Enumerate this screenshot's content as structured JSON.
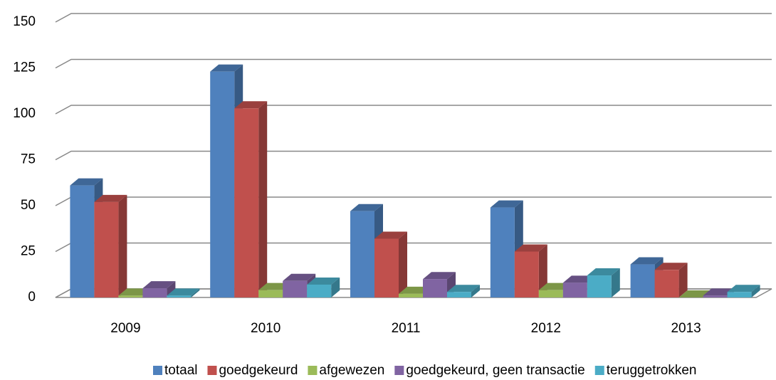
{
  "chart_data": {
    "type": "bar3d",
    "categories": [
      "2009",
      "2010",
      "2011",
      "2012",
      "2013"
    ],
    "series": [
      {
        "name": "totaal",
        "color": "#4f81bd",
        "values": [
          61,
          123,
          47,
          49,
          18
        ]
      },
      {
        "name": "goedgekeurd",
        "color": "#c0504d",
        "values": [
          52,
          103,
          32,
          25,
          15
        ]
      },
      {
        "name": "afgewezen",
        "color": "#9bbb59",
        "values": [
          1,
          4,
          2,
          4,
          0
        ]
      },
      {
        "name": "goedgekeurd, geen transactie",
        "color": "#8064a2",
        "values": [
          5,
          9,
          10,
          8,
          1
        ]
      },
      {
        "name": "teruggetrokken",
        "color": "#4bacc6",
        "values": [
          1,
          7,
          3,
          12,
          3
        ]
      }
    ],
    "ylim": [
      0,
      150
    ],
    "yticks": [
      0,
      25,
      50,
      75,
      100,
      125,
      150
    ],
    "grid": true,
    "legend": "bottom"
  }
}
